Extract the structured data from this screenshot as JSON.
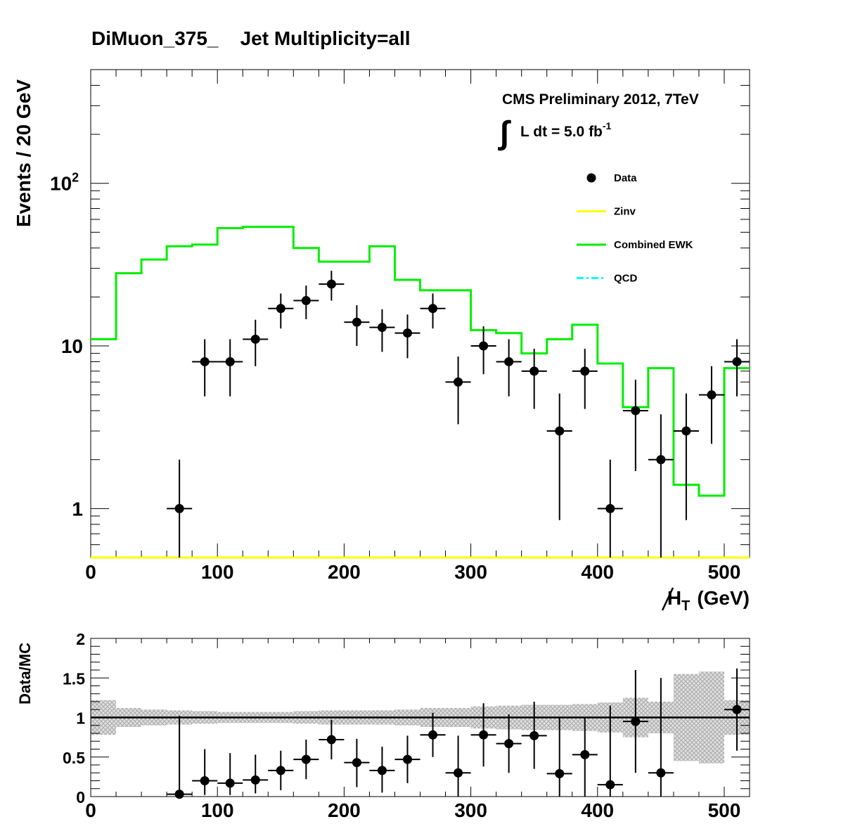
{
  "title": "DiMuon_375_    Jet Multiplicity=all",
  "cms_label": "CMS Preliminary 2012, 7TeV",
  "lumi_label": "L dt = 5.0 fb",
  "lumi_exp": "-1",
  "colors": {
    "ewk": "#00ee00",
    "zinv": "#ffff00",
    "qcd": "#00ffff",
    "data": "#000000",
    "band": "#bbbbbb"
  },
  "chart_data": [
    {
      "type": "line",
      "panel": "main",
      "ylabel": "Events / 20 GeV",
      "xlabel_main": "H",
      "xlabel_sub": "T",
      "xlabel_unit": "(GeV)",
      "xlim": [
        0,
        520
      ],
      "ylim": [
        0.5,
        500
      ],
      "log_y": true,
      "bin_width": 20,
      "bin_edges": [
        0,
        20,
        40,
        60,
        80,
        100,
        120,
        140,
        160,
        180,
        200,
        220,
        240,
        260,
        280,
        300,
        320,
        340,
        360,
        380,
        400,
        420,
        440,
        460,
        480,
        500,
        520
      ],
      "x_ticks": [
        "0",
        "100",
        "200",
        "300",
        "400",
        "500"
      ],
      "y_tick_labels": [
        {
          "value": 1,
          "label": "1",
          "exp": ""
        },
        {
          "value": 10,
          "label": "10",
          "exp": ""
        },
        {
          "value": 100,
          "label": "10",
          "exp": "2"
        }
      ],
      "series": [
        {
          "name": "Combined EWK",
          "kind": "step",
          "values": [
            11,
            28,
            34,
            41,
            42,
            53,
            54,
            54,
            40,
            33,
            33,
            41,
            25.5,
            22,
            22,
            12.5,
            12,
            9,
            11,
            13.5,
            7.8,
            4.2,
            7.3,
            1.4,
            1.2,
            7.3
          ]
        },
        {
          "name": "Zinv",
          "kind": "step",
          "values": [
            0.5,
            0.5,
            0.5,
            0.5,
            0.5,
            0.5,
            0.5,
            0.5,
            0.5,
            0.5,
            0.5,
            0.5,
            0.5,
            0.5,
            0.5,
            0.5,
            0.5,
            0.5,
            0.5,
            0.5,
            0.5,
            0.5,
            0.5,
            0.5,
            0.5,
            0.5
          ]
        },
        {
          "name": "QCD",
          "kind": "step",
          "values": []
        },
        {
          "name": "Data",
          "kind": "points",
          "points": [
            {
              "x": 70,
              "y": 1,
              "lo": 0.3,
              "hi": 2.0
            },
            {
              "x": 90,
              "y": 8,
              "lo": 4.9,
              "hi": 11
            },
            {
              "x": 110,
              "y": 8,
              "lo": 4.9,
              "hi": 11
            },
            {
              "x": 130,
              "y": 11,
              "lo": 7.5,
              "hi": 14.5
            },
            {
              "x": 150,
              "y": 17,
              "lo": 12.8,
              "hi": 21
            },
            {
              "x": 170,
              "y": 19,
              "lo": 14.6,
              "hi": 23.5
            },
            {
              "x": 190,
              "y": 24,
              "lo": 19,
              "hi": 29
            },
            {
              "x": 210,
              "y": 14,
              "lo": 10,
              "hi": 17.8
            },
            {
              "x": 230,
              "y": 13,
              "lo": 9.2,
              "hi": 16.8
            },
            {
              "x": 250,
              "y": 12,
              "lo": 8.4,
              "hi": 15.6
            },
            {
              "x": 270,
              "y": 17,
              "lo": 12.8,
              "hi": 21
            },
            {
              "x": 290,
              "y": 6,
              "lo": 3.3,
              "hi": 8.6
            },
            {
              "x": 310,
              "y": 10,
              "lo": 6.7,
              "hi": 13.2
            },
            {
              "x": 330,
              "y": 8,
              "lo": 4.9,
              "hi": 11
            },
            {
              "x": 350,
              "y": 7,
              "lo": 4.1,
              "hi": 9.6
            },
            {
              "x": 370,
              "y": 3,
              "lo": 0.85,
              "hi": 5.1
            },
            {
              "x": 390,
              "y": 7,
              "lo": 4.1,
              "hi": 9.6
            },
            {
              "x": 410,
              "y": 1,
              "lo": 0.3,
              "hi": 2.0
            },
            {
              "x": 430,
              "y": 4,
              "lo": 1.7,
              "hi": 6.2
            },
            {
              "x": 450,
              "y": 2,
              "lo": 0.5,
              "hi": 3.8
            },
            {
              "x": 470,
              "y": 3,
              "lo": 0.85,
              "hi": 5.1
            },
            {
              "x": 490,
              "y": 5,
              "lo": 2.5,
              "hi": 7.5
            },
            {
              "x": 510,
              "y": 8,
              "lo": 4.9,
              "hi": 11
            }
          ]
        }
      ],
      "legend": {
        "placement": "top-right",
        "entries": [
          {
            "name": "Data",
            "style": "marker"
          },
          {
            "name": "Zinv",
            "style": "line"
          },
          {
            "name": "Combined EWK",
            "style": "line"
          },
          {
            "name": "QCD",
            "style": "dashdot"
          }
        ]
      }
    },
    {
      "type": "scatter",
      "panel": "ratio",
      "ylabel": "Data/MC",
      "xlim": [
        0,
        520
      ],
      "ylim": [
        0,
        2
      ],
      "x_ticks": [
        "0",
        "100",
        "200",
        "300",
        "400",
        "500"
      ],
      "y_ticks": [
        "0",
        "0.5",
        "1",
        "1.5",
        "2"
      ],
      "reference_line": 1,
      "band_edges": [
        0,
        20,
        40,
        60,
        80,
        100,
        120,
        140,
        160,
        180,
        200,
        220,
        240,
        260,
        280,
        300,
        320,
        340,
        360,
        380,
        400,
        420,
        440,
        460,
        480,
        500,
        520
      ],
      "band": [
        {
          "lo": 0.78,
          "hi": 1.22
        },
        {
          "lo": 0.88,
          "hi": 1.12
        },
        {
          "lo": 0.9,
          "hi": 1.1
        },
        {
          "lo": 0.91,
          "hi": 1.09
        },
        {
          "lo": 0.92,
          "hi": 1.08
        },
        {
          "lo": 0.93,
          "hi": 1.07
        },
        {
          "lo": 0.93,
          "hi": 1.07
        },
        {
          "lo": 0.93,
          "hi": 1.07
        },
        {
          "lo": 0.92,
          "hi": 1.08
        },
        {
          "lo": 0.91,
          "hi": 1.09
        },
        {
          "lo": 0.91,
          "hi": 1.09
        },
        {
          "lo": 0.91,
          "hi": 1.09
        },
        {
          "lo": 0.9,
          "hi": 1.1
        },
        {
          "lo": 0.88,
          "hi": 1.12
        },
        {
          "lo": 0.88,
          "hi": 1.12
        },
        {
          "lo": 0.86,
          "hi": 1.14
        },
        {
          "lo": 0.85,
          "hi": 1.15
        },
        {
          "lo": 0.84,
          "hi": 1.16
        },
        {
          "lo": 0.84,
          "hi": 1.16
        },
        {
          "lo": 0.83,
          "hi": 1.17
        },
        {
          "lo": 0.81,
          "hi": 1.19
        },
        {
          "lo": 0.75,
          "hi": 1.25
        },
        {
          "lo": 0.8,
          "hi": 1.2
        },
        {
          "lo": 0.45,
          "hi": 1.55
        },
        {
          "lo": 0.42,
          "hi": 1.58
        },
        {
          "lo": 0.78,
          "hi": 1.22
        }
      ],
      "points": [
        {
          "x": 70,
          "y": 0.03,
          "lo": 0,
          "hi": 1.02
        },
        {
          "x": 90,
          "y": 0.2,
          "lo": 0.02,
          "hi": 0.6
        },
        {
          "x": 110,
          "y": 0.17,
          "lo": 0.02,
          "hi": 0.55
        },
        {
          "x": 130,
          "y": 0.21,
          "lo": 0.04,
          "hi": 0.53
        },
        {
          "x": 150,
          "y": 0.33,
          "lo": 0.08,
          "hi": 0.58
        },
        {
          "x": 170,
          "y": 0.47,
          "lo": 0.22,
          "hi": 0.72
        },
        {
          "x": 190,
          "y": 0.72,
          "lo": 0.47,
          "hi": 0.97
        },
        {
          "x": 210,
          "y": 0.43,
          "lo": 0.12,
          "hi": 0.73
        },
        {
          "x": 230,
          "y": 0.33,
          "lo": 0.05,
          "hi": 0.63
        },
        {
          "x": 250,
          "y": 0.47,
          "lo": 0.17,
          "hi": 0.77
        },
        {
          "x": 270,
          "y": 0.78,
          "lo": 0.5,
          "hi": 1.06
        },
        {
          "x": 290,
          "y": 0.3,
          "lo": 0.0,
          "hi": 0.77
        },
        {
          "x": 310,
          "y": 0.78,
          "lo": 0.38,
          "hi": 1.18
        },
        {
          "x": 330,
          "y": 0.67,
          "lo": 0.3,
          "hi": 1.04
        },
        {
          "x": 350,
          "y": 0.77,
          "lo": 0.35,
          "hi": 1.2
        },
        {
          "x": 370,
          "y": 0.29,
          "lo": 0.0,
          "hi": 1.0
        },
        {
          "x": 390,
          "y": 0.53,
          "lo": 0.0,
          "hi": 1.0
        },
        {
          "x": 410,
          "y": 0.15,
          "lo": 0.0,
          "hi": 1.15
        },
        {
          "x": 430,
          "y": 0.95,
          "lo": 0.3,
          "hi": 1.6
        },
        {
          "x": 450,
          "y": 0.3,
          "lo": 0.0,
          "hi": 1.5
        },
        {
          "x": 510,
          "y": 1.1,
          "lo": 0.58,
          "hi": 1.62
        }
      ]
    }
  ]
}
